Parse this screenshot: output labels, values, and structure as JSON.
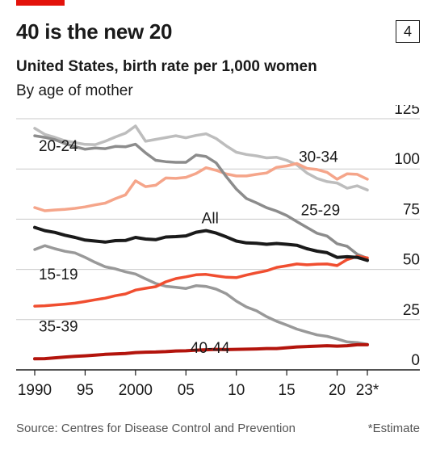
{
  "header": {
    "title": "40 is the new 20",
    "badge": "4",
    "subtitle": "United States, birth rate per 1,000 women",
    "subtitle2": "By age of mother"
  },
  "footer": {
    "source": "Source: Centres for Disease Control and Prevention",
    "note": "*Estimate"
  },
  "colors": {
    "accent": "#e3120b",
    "all": "#1a1a1a",
    "age_20_24": "#8c8c8c",
    "age_25_29": "#bdbdbd",
    "age_30_34": "#f5a58a",
    "age_35_39": "#f04e30",
    "age_40_44": "#b3140c",
    "age_15_19": "#999999"
  },
  "chart_data": {
    "type": "line",
    "title": "40 is the new 20",
    "subtitle": "United States, birth rate per 1,000 women",
    "x": [
      1990,
      1991,
      1992,
      1993,
      1994,
      1995,
      1996,
      1997,
      1998,
      1999,
      2000,
      2001,
      2002,
      2003,
      2004,
      2005,
      2006,
      2007,
      2008,
      2009,
      2010,
      2011,
      2012,
      2013,
      2014,
      2015,
      2016,
      2017,
      2018,
      2019,
      2020,
      2021,
      2022,
      2023
    ],
    "x_ticks": [
      1990,
      1995,
      2000,
      2005,
      2010,
      2015,
      2020,
      2023
    ],
    "x_tick_labels": [
      "1990",
      "95",
      "2000",
      "05",
      "10",
      "15",
      "20",
      "23*"
    ],
    "ylim": [
      0,
      125
    ],
    "y_ticks": [
      0,
      25,
      50,
      75,
      100,
      125
    ],
    "y_axis_position": "right",
    "grid": "horizontal",
    "legend": "direct-labels",
    "series": [
      {
        "name": "20-24",
        "color_key": "age_20_24",
        "width": 3.5,
        "values": [
          116.5,
          115.7,
          114.6,
          112.6,
          111.1,
          109.8,
          110.4,
          110.1,
          111.2,
          111.0,
          112.3,
          108.0,
          104.3,
          103.6,
          103.3,
          103.3,
          106.9,
          106.2,
          103.0,
          96.2,
          90.0,
          85.3,
          83.1,
          80.7,
          79.0,
          76.8,
          73.8,
          70.9,
          68.0,
          66.6,
          62.8,
          61.5,
          57.5,
          55.5
        ]
      },
      {
        "name": "25-29",
        "color_key": "age_25_29",
        "width": 3.5,
        "values": [
          120.2,
          117.2,
          115.7,
          114.0,
          113.1,
          112.2,
          112.1,
          113.8,
          115.9,
          117.8,
          121.4,
          113.8,
          114.7,
          115.6,
          116.5,
          115.5,
          116.7,
          117.5,
          115.1,
          111.5,
          108.3,
          107.2,
          106.5,
          105.5,
          105.8,
          104.3,
          102.1,
          98.0,
          95.3,
          93.7,
          93.0,
          90.4,
          91.6,
          89.5
        ]
      },
      {
        "name": "30-34",
        "color_key": "age_30_34",
        "width": 3.5,
        "values": [
          80.8,
          79.2,
          79.6,
          79.9,
          80.4,
          81.1,
          82.1,
          83.0,
          85.2,
          87.1,
          94.1,
          91.2,
          91.9,
          95.5,
          95.3,
          95.8,
          97.7,
          100.6,
          99.3,
          97.5,
          96.5,
          96.5,
          97.3,
          98.0,
          100.8,
          101.5,
          102.7,
          100.3,
          99.7,
          98.3,
          94.9,
          97.6,
          97.3,
          94.9
        ]
      },
      {
        "name": "All",
        "color_key": "all",
        "width": 4,
        "values": [
          70.9,
          69.3,
          68.4,
          67.0,
          65.9,
          64.6,
          64.1,
          63.6,
          64.3,
          64.4,
          65.9,
          65.1,
          64.8,
          66.1,
          66.3,
          66.7,
          68.5,
          69.3,
          68.1,
          66.2,
          64.1,
          63.2,
          63.0,
          62.5,
          62.9,
          62.5,
          62.0,
          60.3,
          59.1,
          58.3,
          56.0,
          56.3,
          56.0,
          54.5
        ]
      },
      {
        "name": "15-19",
        "color_key": "age_15_19",
        "width": 3.5,
        "values": [
          59.9,
          61.8,
          60.3,
          59.0,
          58.2,
          56.0,
          53.5,
          51.3,
          50.3,
          48.8,
          47.7,
          45.3,
          43.0,
          41.6,
          41.1,
          40.5,
          41.9,
          41.5,
          40.2,
          37.9,
          34.2,
          31.3,
          29.4,
          26.5,
          24.2,
          22.3,
          20.3,
          18.8,
          17.4,
          16.7,
          15.4,
          13.9,
          13.6,
          12.7
        ]
      },
      {
        "name": "35-39",
        "color_key": "age_35_39",
        "width": 3.5,
        "values": [
          31.7,
          31.9,
          32.3,
          32.7,
          33.2,
          34.0,
          34.9,
          35.7,
          36.9,
          37.8,
          39.7,
          40.6,
          41.4,
          43.8,
          45.4,
          46.3,
          47.3,
          47.5,
          46.8,
          46.1,
          45.9,
          47.2,
          48.3,
          49.3,
          51.0,
          51.8,
          52.7,
          52.3,
          52.6,
          52.7,
          51.9,
          54.9,
          56.5,
          55.7
        ]
      },
      {
        "name": "40-44",
        "color_key": "age_40_44",
        "width": 4,
        "values": [
          5.5,
          5.6,
          6.0,
          6.4,
          6.7,
          7.0,
          7.3,
          7.7,
          7.9,
          8.1,
          8.6,
          8.8,
          8.9,
          9.1,
          9.4,
          9.5,
          9.8,
          10.0,
          10.2,
          10.1,
          10.2,
          10.3,
          10.4,
          10.6,
          10.6,
          11.0,
          11.4,
          11.6,
          11.8,
          12.0,
          11.8,
          12.0,
          12.5,
          12.5
        ]
      }
    ]
  }
}
